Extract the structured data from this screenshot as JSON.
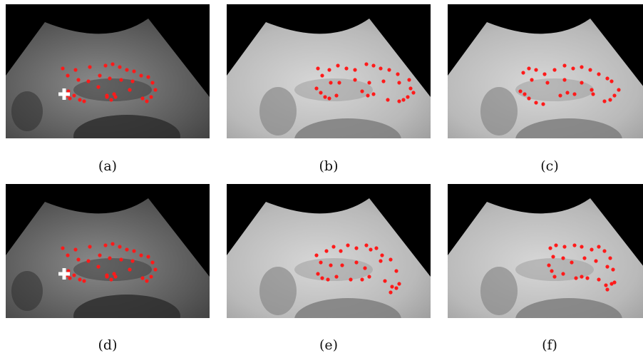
{
  "figure": {
    "panels": [
      {
        "id": "a",
        "caption": "(a)",
        "variant": "dark",
        "has_cross_marker": true
      },
      {
        "id": "b",
        "caption": "(b)",
        "variant": "light",
        "has_cross_marker": false
      },
      {
        "id": "c",
        "caption": "(c)",
        "variant": "light",
        "has_cross_marker": false
      },
      {
        "id": "d",
        "caption": "(d)",
        "variant": "dark",
        "has_cross_marker": true
      },
      {
        "id": "e",
        "caption": "(e)",
        "variant": "light",
        "has_cross_marker": false
      },
      {
        "id": "f",
        "caption": "(f)",
        "variant": "light",
        "has_cross_marker": false
      }
    ],
    "marker_color": "#ff1a1a",
    "cross_color": "#ffffff"
  }
}
